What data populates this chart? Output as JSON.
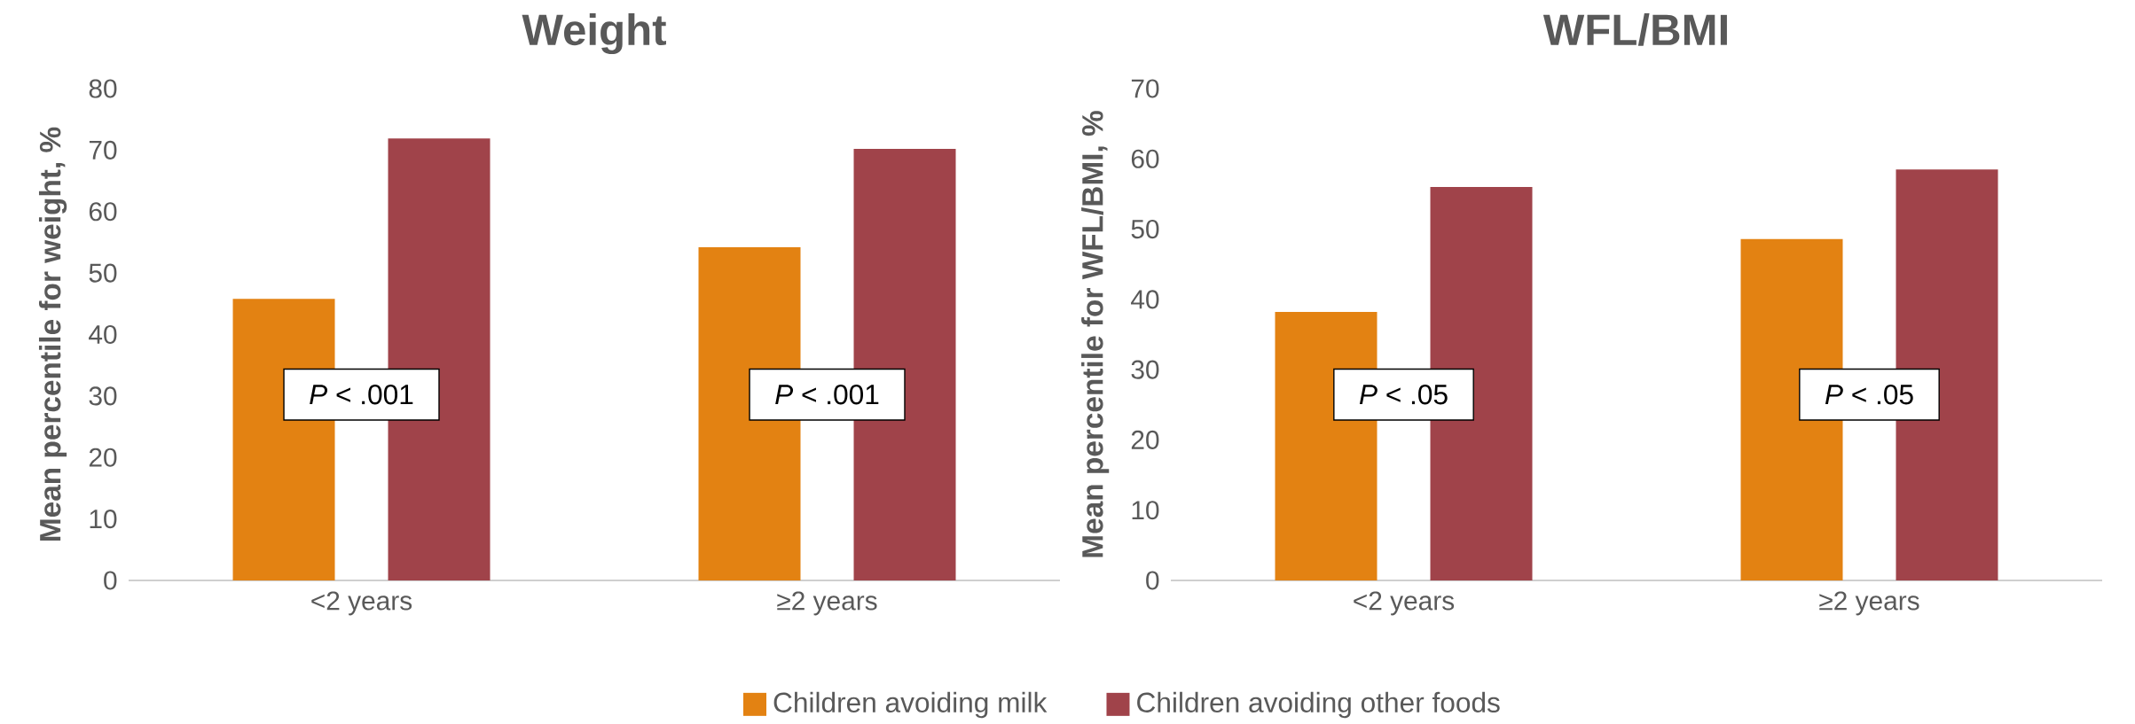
{
  "chart_data": [
    {
      "type": "bar",
      "title": "Weight",
      "ylabel": "Mean percentile for weight, %",
      "categories": [
        "<2 years",
        "≥2 years"
      ],
      "series": [
        {
          "name": "Children avoiding milk",
          "color": "#e38212",
          "values": [
            45.8,
            54.2
          ]
        },
        {
          "name": "Children avoiding other foods",
          "color": "#a0434a",
          "values": [
            71.9,
            70.2
          ]
        }
      ],
      "ylim": [
        0,
        80
      ],
      "yticks": [
        0,
        10,
        20,
        30,
        40,
        50,
        60,
        70,
        80
      ],
      "grid": false,
      "legend": "bottom",
      "annotations": [
        "*P* < .001",
        "*P* < .001"
      ]
    },
    {
      "type": "bar",
      "title": "WFL/BMI",
      "ylabel": "Mean percentile for WFL/BMI, %",
      "categories": [
        "<2 years",
        "≥2 years"
      ],
      "series": [
        {
          "color": "#e38212",
          "values": [
            38.2,
            48.6
          ]
        },
        {
          "color": "#a0434a",
          "values": [
            56.0,
            58.5
          ]
        }
      ],
      "ylim": [
        0,
        70
      ],
      "yticks": [
        0,
        10,
        20,
        30,
        40,
        50,
        60,
        70
      ],
      "grid": false,
      "annotations": [
        "*P* < .05",
        "*P* < .05"
      ]
    }
  ]
}
